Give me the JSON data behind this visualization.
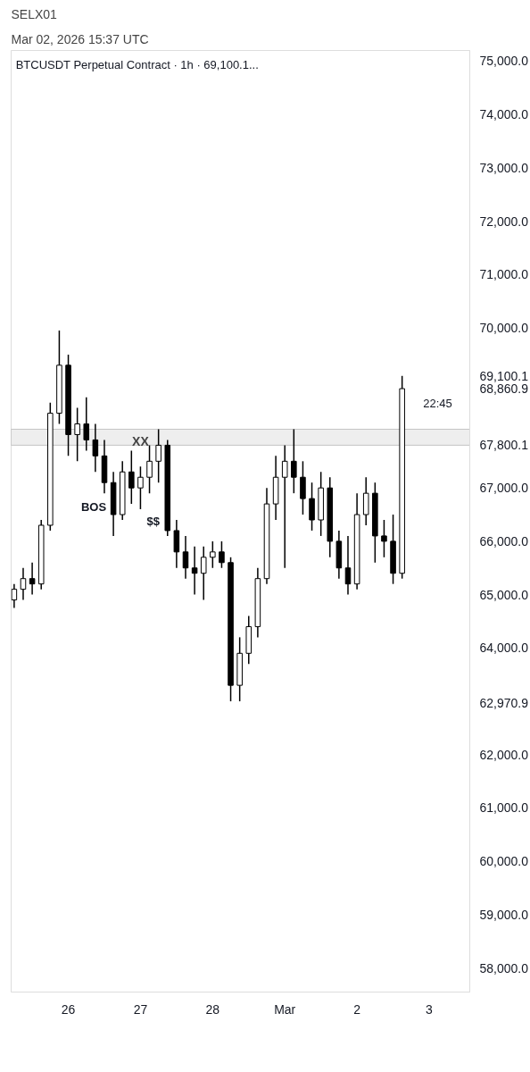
{
  "chart_data": {
    "type": "candlestick",
    "title": "SELX01",
    "subtitle": "Mar 02, 2026 15:37 UTC",
    "annotations": [
      "BTCUSDT Perpetual Contract · 1h · 69,100.1...",
      "22:45",
      {
        "text": "XX",
        "x": "2026-02-27T00:00",
        "y": 67870
      },
      "BOS",
      "$$"
    ],
    "x": [
      "2026-02-25T06:00",
      "2026-02-25T09:00",
      "2026-02-25T12:00",
      "2026-02-25T15:00",
      "2026-02-25T18:00",
      "2026-02-25T21:00",
      "2026-02-26T00:00",
      "2026-02-26T03:00",
      "2026-02-26T06:00",
      "2026-02-26T09:00",
      "2026-02-26T12:00",
      "2026-02-26T15:00",
      "2026-02-26T18:00",
      "2026-02-26T21:00",
      "2026-02-27T00:00",
      "2026-02-27T03:00",
      "2026-02-27T06:00",
      "2026-02-27T09:00",
      "2026-02-27T12:00",
      "2026-02-27T15:00",
      "2026-02-27T18:00",
      "2026-02-27T21:00",
      "2026-02-28T00:00",
      "2026-02-28T03:00",
      "2026-02-28T06:00",
      "2026-02-28T09:00",
      "2026-02-28T12:00",
      "2026-02-28T15:00",
      "2026-02-28T18:00",
      "2026-02-28T21:00",
      "2026-03-01T00:00",
      "2026-03-01T03:00",
      "2026-03-01T06:00",
      "2026-03-01T09:00",
      "2026-03-01T12:00",
      "2026-03-01T15:00",
      "2026-03-01T18:00",
      "2026-03-01T21:00",
      "2026-03-02T00:00",
      "2026-03-02T03:00",
      "2026-03-02T06:00",
      "2026-03-02T09:00",
      "2026-03-02T12:00",
      "2026-03-02T15:00"
    ],
    "ohlc": [
      [
        64900,
        65200,
        64750,
        65100
      ],
      [
        65100,
        65500,
        64900,
        65300
      ],
      [
        65300,
        65600,
        65000,
        65200
      ],
      [
        65200,
        66400,
        65100,
        66300
      ],
      [
        66300,
        68600,
        66200,
        68400
      ],
      [
        68400,
        69950,
        68200,
        69300
      ],
      [
        69300,
        69500,
        67600,
        68000
      ],
      [
        68000,
        68500,
        67500,
        68200
      ],
      [
        68200,
        68700,
        67700,
        67900
      ],
      [
        67900,
        68200,
        67300,
        67600
      ],
      [
        67600,
        67900,
        66900,
        67100
      ],
      [
        67100,
        67300,
        66100,
        66500
      ],
      [
        66500,
        67500,
        66400,
        67300
      ],
      [
        67300,
        67700,
        66700,
        67000
      ],
      [
        67000,
        67400,
        66600,
        67200
      ],
      [
        67200,
        67800,
        66900,
        67500
      ],
      [
        67500,
        68100,
        67100,
        67800
      ],
      [
        67800,
        67900,
        66100,
        66200
      ],
      [
        66200,
        66400,
        65500,
        65800
      ],
      [
        65800,
        66100,
        65300,
        65500
      ],
      [
        65500,
        65900,
        65000,
        65400
      ],
      [
        65400,
        65900,
        64900,
        65700
      ],
      [
        65700,
        66000,
        65500,
        65800
      ],
      [
        65800,
        66000,
        65500,
        65600
      ],
      [
        65600,
        65700,
        63000,
        63300
      ],
      [
        63300,
        64200,
        63000,
        63900
      ],
      [
        63900,
        64600,
        63700,
        64400
      ],
      [
        64400,
        65500,
        64200,
        65300
      ],
      [
        65300,
        67000,
        65200,
        66700
      ],
      [
        66700,
        67600,
        66400,
        67200
      ],
      [
        67200,
        67800,
        65500,
        67500
      ],
      [
        67500,
        68100,
        66900,
        67200
      ],
      [
        67200,
        67500,
        66500,
        66800
      ],
      [
        66800,
        67100,
        66200,
        66400
      ],
      [
        66400,
        67300,
        66100,
        67000
      ],
      [
        67000,
        67200,
        65700,
        66000
      ],
      [
        66000,
        66200,
        65300,
        65500
      ],
      [
        65500,
        66100,
        65000,
        65200
      ],
      [
        65200,
        66900,
        65100,
        66500
      ],
      [
        66500,
        67200,
        66300,
        66900
      ],
      [
        66900,
        67100,
        65600,
        66100
      ],
      [
        66100,
        66400,
        65700,
        66000
      ],
      [
        66000,
        66500,
        65200,
        65400
      ],
      [
        65400,
        69100,
        65300,
        68860.9
      ]
    ],
    "xlim": [
      "2026-02-25T05:00",
      "2026-03-03T13:30"
    ],
    "xticks": [
      {
        "value": "2026-02-26",
        "label": "26"
      },
      {
        "value": "2026-02-27",
        "label": "27"
      },
      {
        "value": "2026-02-28",
        "label": "28"
      },
      {
        "value": "2026-03-01",
        "label": "Mar"
      },
      {
        "value": "2026-03-02",
        "label": "2"
      },
      {
        "value": "2026-03-03",
        "label": "3"
      }
    ],
    "ylim": [
      57550,
      75200
    ],
    "yticks": [
      {
        "value": 58000,
        "label": "58,000.0"
      },
      {
        "value": 59000,
        "label": "59,000.0"
      },
      {
        "value": 60000,
        "label": "60,000.0"
      },
      {
        "value": 61000,
        "label": "61,000.0"
      },
      {
        "value": 62000,
        "label": "62,000.0"
      },
      {
        "value": 62970.9,
        "label": "62,970.9"
      },
      {
        "value": 64000,
        "label": "64,000.0"
      },
      {
        "value": 65000,
        "label": "65,000.0"
      },
      {
        "value": 66000,
        "label": "66,000.0"
      },
      {
        "value": 67000,
        "label": "67,000.0"
      },
      {
        "value": 67800.1,
        "label": "67,800.1"
      },
      {
        "value": 68860.9,
        "label": "68,860.9"
      },
      {
        "value": 69100.1,
        "label": "69,100.1"
      },
      {
        "value": 70000,
        "label": "70,000.0"
      },
      {
        "value": 71000,
        "label": "71,000.0"
      },
      {
        "value": 72000,
        "label": "72,000.0"
      },
      {
        "value": 73000,
        "label": "73,000.0"
      },
      {
        "value": 74000,
        "label": "74,000.0"
      },
      {
        "value": 75000,
        "label": "75,000.0"
      }
    ],
    "bands": [
      {
        "axis": "y",
        "from": 67800.1,
        "to": 68100,
        "color": "#eeeeee"
      }
    ],
    "color": "#000000",
    "grid": false
  }
}
